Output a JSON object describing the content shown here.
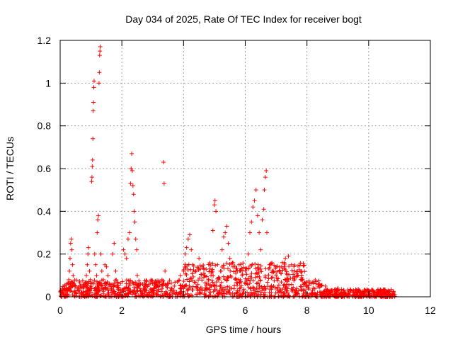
{
  "colors": {
    "series": "#ff0000",
    "grid": "#a0a0a0",
    "axis": "#000000"
  },
  "chart_data": {
    "type": "scatter",
    "title": "Day 034 of 2025, Rate Of TEC Index for receiver bogt",
    "xlabel": "GPS time / hours",
    "ylabel": "ROTI / TECUs",
    "xlim": [
      0,
      12
    ],
    "ylim": [
      0,
      1.2
    ],
    "xticks": [
      0,
      2,
      4,
      6,
      8,
      10,
      12
    ],
    "xtick_labels": [
      "0",
      "2",
      "4",
      "6",
      "8",
      "10",
      "12"
    ],
    "yticks": [
      0,
      0.2,
      0.4,
      0.6,
      0.8,
      1.0,
      1.2
    ],
    "ytick_labels": [
      "0",
      "0.2",
      "0.4",
      "0.6",
      "0.8",
      "1",
      "1.2"
    ],
    "grid": true,
    "legend": "none",
    "marker": "plus",
    "series": [
      {
        "name": "",
        "points": [
          [
            0.02,
            0.03
          ],
          [
            0.05,
            0.02
          ],
          [
            0.08,
            0.04
          ],
          [
            0.1,
            0.01
          ],
          [
            0.12,
            0.03
          ],
          [
            0.15,
            0.05
          ],
          [
            0.18,
            0.02
          ],
          [
            0.2,
            0.04
          ],
          [
            0.22,
            0.06
          ],
          [
            0.25,
            0.03
          ],
          [
            0.28,
            0.08
          ],
          [
            0.3,
            0.12
          ],
          [
            0.32,
            0.18
          ],
          [
            0.34,
            0.25
          ],
          [
            0.36,
            0.27
          ],
          [
            0.38,
            0.22
          ],
          [
            0.4,
            0.15
          ],
          [
            0.42,
            0.1
          ],
          [
            0.45,
            0.06
          ],
          [
            0.48,
            0.03
          ],
          [
            0.5,
            0.02
          ],
          [
            0.55,
            0.04
          ],
          [
            0.6,
            0.03
          ],
          [
            0.65,
            0.05
          ],
          [
            0.7,
            0.02
          ],
          [
            0.75,
            0.04
          ],
          [
            0.8,
            0.06
          ],
          [
            0.85,
            0.1
          ],
          [
            0.88,
            0.15
          ],
          [
            0.9,
            0.2
          ],
          [
            0.92,
            0.23
          ],
          [
            0.95,
            0.12
          ],
          [
            0.98,
            0.08
          ],
          [
            1.0,
            0.05
          ],
          [
            1.02,
            0.54
          ],
          [
            1.03,
            0.56
          ],
          [
            1.04,
            0.61
          ],
          [
            1.05,
            0.64
          ],
          [
            1.06,
            0.74
          ],
          [
            1.07,
            0.87
          ],
          [
            1.08,
            0.91
          ],
          [
            1.09,
            0.98
          ],
          [
            1.1,
            1.01
          ],
          [
            1.12,
            0.2
          ],
          [
            1.15,
            0.15
          ],
          [
            1.18,
            0.1
          ],
          [
            1.2,
            0.3
          ],
          [
            1.22,
            0.36
          ],
          [
            1.24,
            0.38
          ],
          [
            1.26,
            1.0
          ],
          [
            1.27,
            1.05
          ],
          [
            1.28,
            1.13
          ],
          [
            1.29,
            1.15
          ],
          [
            1.3,
            1.17
          ],
          [
            1.32,
            0.2
          ],
          [
            1.35,
            0.12
          ],
          [
            1.4,
            0.08
          ],
          [
            1.45,
            0.15
          ],
          [
            1.5,
            0.14
          ],
          [
            1.55,
            0.1
          ],
          [
            1.6,
            0.06
          ],
          [
            1.65,
            0.03
          ],
          [
            1.7,
            0.2
          ],
          [
            1.75,
            0.25
          ],
          [
            1.8,
            0.12
          ],
          [
            1.85,
            0.05
          ],
          [
            1.9,
            0.03
          ],
          [
            1.95,
            0.02
          ],
          [
            2.0,
            0.02
          ],
          [
            2.05,
            0.22
          ],
          [
            2.1,
            0.2
          ],
          [
            2.15,
            0.18
          ],
          [
            2.2,
            0.27
          ],
          [
            2.25,
            0.3
          ],
          [
            2.28,
            0.53
          ],
          [
            2.3,
            0.6
          ],
          [
            2.32,
            0.67
          ],
          [
            2.34,
            0.59
          ],
          [
            2.36,
            0.52
          ],
          [
            2.38,
            0.48
          ],
          [
            2.4,
            0.4
          ],
          [
            2.42,
            0.35
          ],
          [
            2.45,
            0.27
          ],
          [
            2.48,
            0.22
          ],
          [
            2.5,
            0.1
          ],
          [
            2.55,
            0.05
          ],
          [
            2.6,
            0.03
          ],
          [
            2.7,
            0.04
          ],
          [
            2.8,
            0.03
          ],
          [
            3.0,
            0.03
          ],
          [
            3.1,
            0.05
          ],
          [
            3.2,
            0.07
          ],
          [
            3.3,
            0.08
          ],
          [
            3.35,
            0.63
          ],
          [
            3.37,
            0.53
          ],
          [
            3.4,
            0.12
          ],
          [
            3.5,
            0.06
          ],
          [
            3.6,
            0.04
          ],
          [
            3.7,
            0.05
          ],
          [
            3.8,
            0.07
          ],
          [
            3.9,
            0.1
          ],
          [
            4.0,
            0.12
          ],
          [
            4.05,
            0.2
          ],
          [
            4.1,
            0.23
          ],
          [
            4.15,
            0.27
          ],
          [
            4.2,
            0.29
          ],
          [
            4.25,
            0.22
          ],
          [
            4.3,
            0.15
          ],
          [
            4.4,
            0.12
          ],
          [
            4.5,
            0.18
          ],
          [
            4.6,
            0.14
          ],
          [
            4.7,
            0.1
          ],
          [
            4.8,
            0.08
          ],
          [
            4.9,
            0.12
          ],
          [
            4.95,
            0.31
          ],
          [
            5.0,
            0.43
          ],
          [
            5.02,
            0.45
          ],
          [
            5.05,
            0.4
          ],
          [
            5.1,
            0.15
          ],
          [
            5.2,
            0.12
          ],
          [
            5.25,
            0.22
          ],
          [
            5.3,
            0.28
          ],
          [
            5.35,
            0.3
          ],
          [
            5.4,
            0.33
          ],
          [
            5.45,
            0.25
          ],
          [
            5.5,
            0.18
          ],
          [
            5.6,
            0.14
          ],
          [
            5.7,
            0.12
          ],
          [
            5.8,
            0.15
          ],
          [
            5.9,
            0.1
          ],
          [
            6.0,
            0.12
          ],
          [
            6.1,
            0.2
          ],
          [
            6.15,
            0.3
          ],
          [
            6.2,
            0.35
          ],
          [
            6.25,
            0.42
          ],
          [
            6.3,
            0.45
          ],
          [
            6.35,
            0.5
          ],
          [
            6.4,
            0.38
          ],
          [
            6.45,
            0.3
          ],
          [
            6.5,
            0.22
          ],
          [
            6.55,
            0.36
          ],
          [
            6.6,
            0.41
          ],
          [
            6.62,
            0.5
          ],
          [
            6.65,
            0.56
          ],
          [
            6.68,
            0.59
          ],
          [
            6.7,
            0.3
          ],
          [
            6.8,
            0.15
          ],
          [
            6.9,
            0.12
          ],
          [
            7.0,
            0.14
          ],
          [
            7.1,
            0.12
          ],
          [
            7.2,
            0.16
          ],
          [
            7.3,
            0.18
          ],
          [
            7.4,
            0.19
          ],
          [
            7.5,
            0.15
          ],
          [
            7.6,
            0.12
          ],
          [
            7.7,
            0.1
          ],
          [
            7.8,
            0.08
          ],
          [
            7.9,
            0.06
          ],
          [
            8.0,
            0.05
          ],
          [
            8.2,
            0.04
          ],
          [
            8.4,
            0.06
          ],
          [
            8.6,
            0.05
          ],
          [
            8.8,
            0.03
          ],
          [
            9.0,
            0.04
          ],
          [
            9.2,
            0.03
          ],
          [
            9.4,
            0.02
          ],
          [
            9.6,
            0.03
          ],
          [
            9.8,
            0.02
          ],
          [
            10.0,
            0.03
          ],
          [
            10.2,
            0.02
          ],
          [
            10.4,
            0.03
          ],
          [
            10.6,
            0.02
          ],
          [
            10.8,
            0.02
          ],
          [
            10.85,
            0.01
          ]
        ],
        "baseline_band": {
          "from": 0.0,
          "to": 10.85,
          "ymin": 0.0,
          "ymax": 0.08,
          "count": 1400
        }
      }
    ]
  }
}
